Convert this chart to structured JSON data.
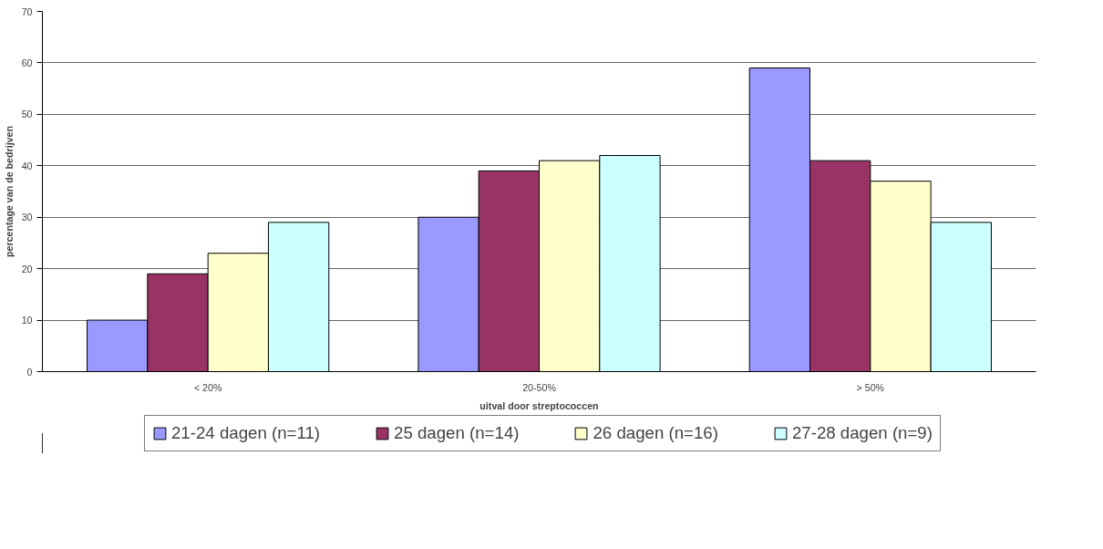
{
  "chart_data": {
    "type": "bar",
    "xlabel": "uitval door streptococcen",
    "ylabel": "percentage van de bedrijven",
    "categories": [
      "< 20%",
      "20-50%",
      "> 50%"
    ],
    "series": [
      {
        "name": "21-24 dagen (n=11)",
        "color": "#9999ff",
        "values": [
          10,
          30,
          59
        ]
      },
      {
        "name": "25 dagen (n=14)",
        "color": "#993366",
        "values": [
          19,
          39,
          41
        ]
      },
      {
        "name": "26 dagen (n=16)",
        "color": "#ffffcc",
        "values": [
          23,
          41,
          37
        ]
      },
      {
        "name": "27-28 dagen (n=9)",
        "color": "#ccffff",
        "values": [
          29,
          42,
          29
        ]
      }
    ],
    "ylim": [
      0,
      70
    ],
    "yticks": [
      0,
      10,
      20,
      30,
      40,
      50,
      60,
      70
    ],
    "grid": "y",
    "legend": "bottom"
  }
}
